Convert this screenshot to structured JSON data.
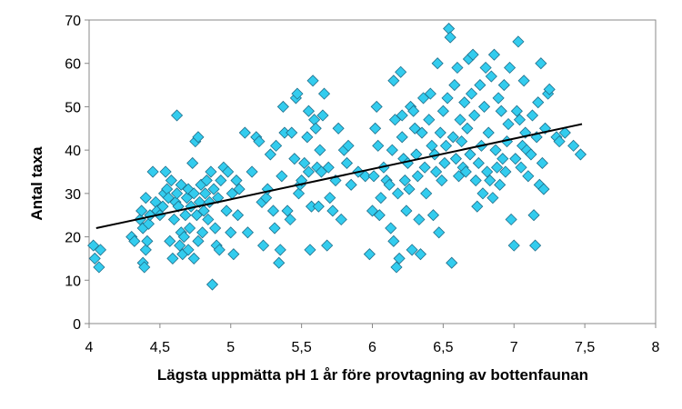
{
  "chart_data": {
    "type": "scatter",
    "title": "",
    "xlabel": "Lägsta uppmätta pH 1 år före provtagning av  bottenfaunan",
    "ylabel": "Antal taxa",
    "xlim": [
      4,
      8
    ],
    "ylim": [
      0,
      70
    ],
    "xticks": [
      4,
      4.5,
      5,
      5.5,
      6,
      6.5,
      7,
      7.5,
      8
    ],
    "xtick_labels": [
      "4",
      "4,5",
      "5",
      "5,5",
      "6",
      "6,5",
      "7",
      "7,5",
      "8"
    ],
    "yticks": [
      0,
      10,
      20,
      30,
      40,
      50,
      60,
      70
    ],
    "ytick_labels": [
      "0",
      "10",
      "20",
      "30",
      "40",
      "50",
      "60",
      "70"
    ],
    "grid": false,
    "legend": "none",
    "marker": "diamond",
    "marker_color": "#33ccee",
    "marker_edge_color": "#1f6e8a",
    "trendline": {
      "x": [
        4.05,
        7.48
      ],
      "y": [
        22,
        46
      ],
      "color": "#000000"
    },
    "series": [
      {
        "points": [
          [
            4.03,
            18
          ],
          [
            4.04,
            15
          ],
          [
            4.07,
            13
          ],
          [
            4.08,
            17
          ],
          [
            4.3,
            20
          ],
          [
            4.32,
            19
          ],
          [
            4.36,
            24
          ],
          [
            4.37,
            26
          ],
          [
            4.38,
            14
          ],
          [
            4.38,
            22
          ],
          [
            4.39,
            13
          ],
          [
            4.4,
            17
          ],
          [
            4.4,
            29
          ],
          [
            4.41,
            19
          ],
          [
            4.42,
            23
          ],
          [
            4.43,
            25
          ],
          [
            4.45,
            35
          ],
          [
            4.47,
            28
          ],
          [
            4.48,
            26
          ],
          [
            4.5,
            25
          ],
          [
            4.52,
            27
          ],
          [
            4.53,
            30
          ],
          [
            4.54,
            35
          ],
          [
            4.55,
            31
          ],
          [
            4.56,
            29
          ],
          [
            4.57,
            19
          ],
          [
            4.58,
            33
          ],
          [
            4.59,
            15
          ],
          [
            4.6,
            24
          ],
          [
            4.61,
            28
          ],
          [
            4.62,
            48
          ],
          [
            4.62,
            30
          ],
          [
            4.63,
            27
          ],
          [
            4.64,
            18
          ],
          [
            4.65,
            32
          ],
          [
            4.65,
            21
          ],
          [
            4.66,
            16
          ],
          [
            4.67,
            20
          ],
          [
            4.68,
            25
          ],
          [
            4.69,
            29
          ],
          [
            4.7,
            31
          ],
          [
            4.7,
            17
          ],
          [
            4.71,
            22
          ],
          [
            4.72,
            27
          ],
          [
            4.73,
            37
          ],
          [
            4.74,
            30
          ],
          [
            4.74,
            15
          ],
          [
            4.75,
            42
          ],
          [
            4.76,
            25
          ],
          [
            4.77,
            43
          ],
          [
            4.77,
            19
          ],
          [
            4.78,
            28
          ],
          [
            4.79,
            32
          ],
          [
            4.8,
            21
          ],
          [
            4.81,
            26
          ],
          [
            4.82,
            30
          ],
          [
            4.83,
            33
          ],
          [
            4.84,
            24
          ],
          [
            4.85,
            28
          ],
          [
            4.86,
            35
          ],
          [
            4.87,
            9
          ],
          [
            4.88,
            31
          ],
          [
            4.89,
            22
          ],
          [
            4.9,
            18
          ],
          [
            4.91,
            29
          ],
          [
            4.92,
            17
          ],
          [
            4.93,
            33
          ],
          [
            4.95,
            36
          ],
          [
            4.97,
            26
          ],
          [
            4.98,
            35
          ],
          [
            5.0,
            21
          ],
          [
            5.01,
            30
          ],
          [
            5.02,
            16
          ],
          [
            5.04,
            33
          ],
          [
            5.05,
            25
          ],
          [
            5.06,
            31
          ],
          [
            5.1,
            44
          ],
          [
            5.12,
            21
          ],
          [
            5.15,
            35
          ],
          [
            5.18,
            43
          ],
          [
            5.2,
            42
          ],
          [
            5.22,
            28
          ],
          [
            5.23,
            18
          ],
          [
            5.25,
            29
          ],
          [
            5.26,
            31
          ],
          [
            5.28,
            39
          ],
          [
            5.3,
            26
          ],
          [
            5.31,
            22
          ],
          [
            5.32,
            41
          ],
          [
            5.34,
            14
          ],
          [
            5.35,
            17
          ],
          [
            5.36,
            34
          ],
          [
            5.37,
            50
          ],
          [
            5.38,
            44
          ],
          [
            5.4,
            26
          ],
          [
            5.42,
            24
          ],
          [
            5.43,
            44
          ],
          [
            5.45,
            38
          ],
          [
            5.46,
            52
          ],
          [
            5.47,
            53
          ],
          [
            5.48,
            30
          ],
          [
            5.49,
            32
          ],
          [
            5.5,
            33
          ],
          [
            5.52,
            37
          ],
          [
            5.54,
            43
          ],
          [
            5.55,
            49
          ],
          [
            5.55,
            35
          ],
          [
            5.56,
            17
          ],
          [
            5.57,
            27
          ],
          [
            5.58,
            56
          ],
          [
            5.59,
            47
          ],
          [
            5.6,
            45
          ],
          [
            5.61,
            36
          ],
          [
            5.62,
            27
          ],
          [
            5.63,
            40
          ],
          [
            5.64,
            35
          ],
          [
            5.65,
            48
          ],
          [
            5.66,
            53
          ],
          [
            5.68,
            18
          ],
          [
            5.69,
            36
          ],
          [
            5.7,
            29
          ],
          [
            5.72,
            26
          ],
          [
            5.74,
            33
          ],
          [
            5.76,
            45
          ],
          [
            5.78,
            24
          ],
          [
            5.8,
            40
          ],
          [
            5.82,
            37
          ],
          [
            5.83,
            41
          ],
          [
            5.85,
            32
          ],
          [
            5.9,
            35
          ],
          [
            5.95,
            34
          ],
          [
            5.98,
            16
          ],
          [
            6.0,
            26
          ],
          [
            6.01,
            34
          ],
          [
            6.02,
            45
          ],
          [
            6.03,
            50
          ],
          [
            6.04,
            41
          ],
          [
            6.05,
            25
          ],
          [
            6.06,
            29
          ],
          [
            6.08,
            36
          ],
          [
            6.1,
            33
          ],
          [
            6.12,
            32
          ],
          [
            6.13,
            22
          ],
          [
            6.14,
            40
          ],
          [
            6.15,
            56
          ],
          [
            6.15,
            19
          ],
          [
            6.16,
            47
          ],
          [
            6.17,
            13
          ],
          [
            6.18,
            30
          ],
          [
            6.19,
            15
          ],
          [
            6.2,
            58
          ],
          [
            6.21,
            48
          ],
          [
            6.21,
            43
          ],
          [
            6.22,
            38
          ],
          [
            6.23,
            33
          ],
          [
            6.24,
            26
          ],
          [
            6.25,
            37
          ],
          [
            6.26,
            31
          ],
          [
            6.27,
            50
          ],
          [
            6.28,
            17
          ],
          [
            6.29,
            49
          ],
          [
            6.3,
            45
          ],
          [
            6.31,
            39
          ],
          [
            6.32,
            34
          ],
          [
            6.33,
            24
          ],
          [
            6.34,
            16
          ],
          [
            6.35,
            44
          ],
          [
            6.36,
            52
          ],
          [
            6.37,
            36
          ],
          [
            6.38,
            30
          ],
          [
            6.4,
            47
          ],
          [
            6.41,
            53
          ],
          [
            6.42,
            41
          ],
          [
            6.43,
            25
          ],
          [
            6.44,
            39
          ],
          [
            6.45,
            35
          ],
          [
            6.46,
            60
          ],
          [
            6.47,
            21
          ],
          [
            6.48,
            44
          ],
          [
            6.49,
            33
          ],
          [
            6.5,
            49
          ],
          [
            6.51,
            37
          ],
          [
            6.52,
            41
          ],
          [
            6.53,
            52
          ],
          [
            6.54,
            68
          ],
          [
            6.55,
            66
          ],
          [
            6.56,
            14
          ],
          [
            6.57,
            43
          ],
          [
            6.58,
            55
          ],
          [
            6.59,
            38
          ],
          [
            6.6,
            59
          ],
          [
            6.61,
            34
          ],
          [
            6.62,
            47
          ],
          [
            6.63,
            42
          ],
          [
            6.64,
            36
          ],
          [
            6.65,
            51
          ],
          [
            6.66,
            35
          ],
          [
            6.67,
            45
          ],
          [
            6.68,
            61
          ],
          [
            6.69,
            39
          ],
          [
            6.7,
            53
          ],
          [
            6.71,
            62
          ],
          [
            6.72,
            48
          ],
          [
            6.73,
            33
          ],
          [
            6.74,
            27
          ],
          [
            6.75,
            37
          ],
          [
            6.76,
            55
          ],
          [
            6.77,
            41
          ],
          [
            6.78,
            30
          ],
          [
            6.79,
            50
          ],
          [
            6.8,
            59
          ],
          [
            6.81,
            35
          ],
          [
            6.82,
            44
          ],
          [
            6.83,
            33
          ],
          [
            6.84,
            57
          ],
          [
            6.85,
            29
          ],
          [
            6.86,
            62
          ],
          [
            6.87,
            40
          ],
          [
            6.88,
            36
          ],
          [
            6.89,
            52
          ],
          [
            6.9,
            32
          ],
          [
            6.91,
            49
          ],
          [
            6.92,
            38
          ],
          [
            6.93,
            55
          ],
          [
            6.94,
            35
          ],
          [
            6.95,
            42
          ],
          [
            6.96,
            46
          ],
          [
            6.97,
            59
          ],
          [
            6.98,
            24
          ],
          [
            7.0,
            18
          ],
          [
            7.01,
            38
          ],
          [
            7.02,
            49
          ],
          [
            7.03,
            65
          ],
          [
            7.04,
            47
          ],
          [
            7.05,
            36
          ],
          [
            7.06,
            41
          ],
          [
            7.07,
            56
          ],
          [
            7.08,
            44
          ],
          [
            7.09,
            40
          ],
          [
            7.1,
            34
          ],
          [
            7.12,
            39
          ],
          [
            7.13,
            48
          ],
          [
            7.14,
            25
          ],
          [
            7.15,
            18
          ],
          [
            7.16,
            43
          ],
          [
            7.17,
            51
          ],
          [
            7.18,
            32
          ],
          [
            7.19,
            60
          ],
          [
            7.2,
            37
          ],
          [
            7.21,
            31
          ],
          [
            7.22,
            45
          ],
          [
            7.24,
            53
          ],
          [
            7.25,
            54
          ],
          [
            7.3,
            43
          ],
          [
            7.32,
            42
          ],
          [
            7.36,
            44
          ],
          [
            7.42,
            41
          ],
          [
            7.47,
            39
          ]
        ]
      }
    ]
  }
}
